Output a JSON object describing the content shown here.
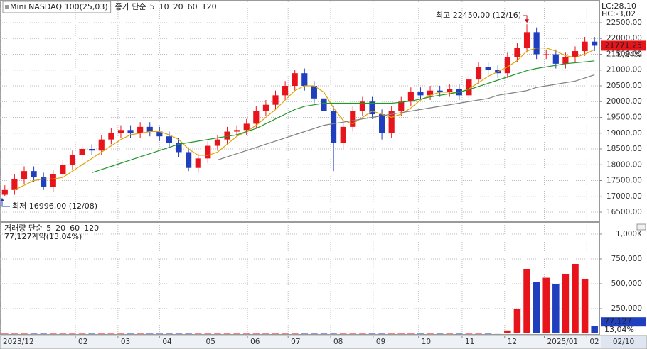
{
  "chart_data": [
    {
      "type": "candlestick",
      "title": "Mini NASDAQ 100(25,03)",
      "legend_title": "종가 단순",
      "indicators": [
        {
          "name": "5",
          "color": "#c02ac0"
        },
        {
          "name": "10",
          "color": "#2f4fe0"
        }
      ],
      "up_color": "#e8141c",
      "down_color": "#1f3fbf",
      "open": [
        17050,
        17200,
        17550,
        17800,
        17600,
        17300,
        17700,
        18000,
        18300,
        18500,
        18450,
        18800,
        19000,
        19100,
        19000,
        19200,
        19050,
        18900,
        18700,
        18400,
        17900,
        18200,
        18600,
        18800,
        19050,
        19100,
        19300,
        19700,
        19900,
        20200,
        20500,
        20900,
        20500,
        20100,
        19700,
        18700,
        19200,
        19700,
        20000,
        19600,
        19000,
        19700,
        20000,
        20300,
        20200,
        20350,
        20300,
        20400,
        20200,
        20700,
        21100,
        21000,
        20900,
        21400,
        21700,
        22200,
        21500,
        21500,
        21200,
        21400,
        21600,
        21900
      ],
      "high": [
        17350,
        17700,
        17950,
        17950,
        17750,
        17850,
        18150,
        18450,
        18650,
        18650,
        18950,
        19150,
        19250,
        19250,
        19350,
        19350,
        19200,
        19050,
        18850,
        18550,
        18350,
        18750,
        18950,
        19200,
        19250,
        19450,
        19850,
        20050,
        20350,
        20650,
        21000,
        21050,
        20650,
        20250,
        19850,
        19350,
        19850,
        20150,
        20150,
        19750,
        19850,
        20150,
        20450,
        20450,
        20500,
        20500,
        20550,
        20550,
        20850,
        21250,
        21250,
        21150,
        21550,
        21850,
        22450,
        22350,
        21650,
        21650,
        21550,
        21750,
        22050,
        22050
      ],
      "low": [
        16996,
        17050,
        17400,
        17450,
        17200,
        17150,
        17550,
        17850,
        18150,
        18300,
        18300,
        18650,
        18850,
        18850,
        18850,
        18900,
        18750,
        18550,
        18250,
        17800,
        17750,
        18050,
        18450,
        18650,
        18900,
        18950,
        19150,
        19550,
        19750,
        20050,
        20350,
        20350,
        19950,
        19550,
        17800,
        18550,
        19050,
        19550,
        19450,
        18800,
        18850,
        19550,
        19850,
        20050,
        20050,
        20150,
        20150,
        20050,
        20050,
        20550,
        20850,
        20750,
        20750,
        21250,
        21550,
        21350,
        21350,
        21050,
        21050,
        21250,
        21450,
        21600
      ],
      "close": [
        17200,
        17550,
        17800,
        17600,
        17300,
        17700,
        18000,
        18300,
        18500,
        18450,
        18800,
        19000,
        19100,
        19000,
        19200,
        19050,
        18900,
        18700,
        18400,
        17900,
        18200,
        18600,
        18800,
        19050,
        19100,
        19300,
        19700,
        19900,
        20200,
        20500,
        20900,
        20500,
        20100,
        19700,
        18700,
        19200,
        19700,
        20000,
        19600,
        19000,
        19700,
        20000,
        20300,
        20200,
        20350,
        20300,
        20400,
        20200,
        20700,
        21100,
        21000,
        20900,
        21400,
        21700,
        22200,
        21500,
        21500,
        21200,
        21400,
        21600,
        21900,
        21771.25
      ],
      "series": [
        {
          "name": "20",
          "color": "#e0a300",
          "values": [
            null,
            17200,
            17350,
            17500,
            17550,
            17550,
            17600,
            17800,
            18000,
            18200,
            18400,
            18600,
            18800,
            18950,
            19000,
            19050,
            19050,
            18950,
            18800,
            18500,
            18300,
            18300,
            18400,
            18650,
            18900,
            19050,
            19250,
            19500,
            19750,
            20050,
            20350,
            20500,
            20500,
            20300,
            19800,
            19400,
            19300,
            19500,
            19700,
            19600,
            19500,
            19600,
            19800,
            20050,
            20200,
            20300,
            20300,
            20300,
            20400,
            20600,
            20800,
            20950,
            21100,
            21300,
            21600,
            21700,
            21700,
            21600,
            21450,
            21400,
            21500,
            21650
          ]
        },
        {
          "name": "60",
          "color": "#22962a",
          "values": [
            null,
            null,
            null,
            null,
            null,
            null,
            null,
            null,
            null,
            17750,
            17850,
            17950,
            18050,
            18150,
            18250,
            18350,
            18450,
            18550,
            18650,
            18700,
            18750,
            18800,
            18850,
            18900,
            18950,
            19050,
            19150,
            19300,
            19450,
            19600,
            19750,
            19850,
            19900,
            19950,
            19950,
            19950,
            19950,
            19950,
            19950,
            19950,
            19950,
            19980,
            20020,
            20080,
            20150,
            20200,
            20250,
            20300,
            20380,
            20480,
            20580,
            20680,
            20780,
            20880,
            20980,
            21050,
            21100,
            21150,
            21200,
            21230,
            21260,
            21290
          ]
        },
        {
          "name": "120",
          "color": "#808080",
          "values": [
            null,
            null,
            null,
            null,
            null,
            null,
            null,
            null,
            null,
            null,
            null,
            null,
            null,
            null,
            null,
            null,
            null,
            null,
            null,
            null,
            null,
            null,
            18150,
            18250,
            18350,
            18450,
            18550,
            18650,
            18750,
            18850,
            18950,
            19050,
            19150,
            19250,
            19300,
            19350,
            19400,
            19450,
            19500,
            19550,
            19600,
            19650,
            19700,
            19750,
            19800,
            19850,
            19900,
            19950,
            20000,
            20050,
            20100,
            20200,
            20250,
            20300,
            20350,
            20450,
            20500,
            20550,
            20600,
            20650,
            20750,
            20850
          ]
        }
      ],
      "ylim": [
        16208,
        23174
      ],
      "yticks": [
        {
          "value": 16500,
          "label": "16500,00"
        },
        {
          "value": 17000,
          "label": "17000,00"
        },
        {
          "value": 17500,
          "label": "17500,00"
        },
        {
          "value": 18000,
          "label": "18000,00"
        },
        {
          "value": 18500,
          "label": "18500,00"
        },
        {
          "value": 19000,
          "label": "19000,00"
        },
        {
          "value": 19500,
          "label": "19500,00"
        },
        {
          "value": 20000,
          "label": "20000,00"
        },
        {
          "value": 20500,
          "label": "20500,00"
        },
        {
          "value": 21000,
          "label": "21000,00"
        },
        {
          "value": 21500,
          "label": "21500,00"
        },
        {
          "value": 22000,
          "label": "22000,00"
        },
        {
          "value": 22500,
          "label": "22500,00"
        }
      ],
      "grid": true,
      "high_annotation": {
        "value": 22450,
        "label": "최고 22450,00 (12/16)"
      },
      "low_annotation": {
        "value": 16996,
        "label": "최저 16996,00 (12/08)"
      },
      "last_price": {
        "value": 21771.25,
        "label": "21771,25"
      },
      "change": "0,84%",
      "lc": "LC:28,10",
      "hc": "HC:-3,02"
    },
    {
      "type": "bar",
      "legend_title": "거래량 단순",
      "indicators": [
        {
          "name": "5",
          "color": "#c02ac0"
        },
        {
          "name": "20",
          "color": "#e0a300"
        },
        {
          "name": "60",
          "color": "#22962a"
        },
        {
          "name": "120",
          "color": "#808080"
        }
      ],
      "status": "77,127계약(13,04%)",
      "values": [
        2000,
        2000,
        2000,
        2000,
        2000,
        2000,
        2000,
        2000,
        2000,
        2000,
        2000,
        2000,
        2000,
        2000,
        2000,
        2000,
        2000,
        2000,
        2000,
        2000,
        2000,
        2000,
        2000,
        2000,
        2000,
        2000,
        2000,
        2000,
        2000,
        2000,
        2000,
        2000,
        2000,
        2000,
        2000,
        2000,
        2000,
        2000,
        2000,
        2000,
        2000,
        2000,
        2000,
        2000,
        2000,
        2000,
        2000,
        2000,
        2000,
        2000,
        2000,
        5000,
        30000,
        250000,
        650000,
        520000,
        560000,
        500000,
        600000,
        700000,
        550000,
        77127
      ],
      "ylim": [
        0,
        1114000
      ],
      "yticks": [
        {
          "value": 250000,
          "label": "250,000"
        },
        {
          "value": 500000,
          "label": "500,000"
        },
        {
          "value": 750000,
          "label": "750,000"
        },
        {
          "value": 1000000,
          "label": "1,000K"
        }
      ],
      "grid": true,
      "last_volume": {
        "value": 77127,
        "label": "77,127"
      },
      "share": "13,04%",
      "xticks": [
        {
          "value": 0,
          "label": "2023/12"
        },
        {
          "value": 7.8,
          "label": "02"
        },
        {
          "value": 12.2,
          "label": "03"
        },
        {
          "value": 16.5,
          "label": "04"
        },
        {
          "value": 21,
          "label": "05"
        },
        {
          "value": 25.6,
          "label": "06"
        },
        {
          "value": 29.8,
          "label": "07"
        },
        {
          "value": 34.2,
          "label": "08"
        },
        {
          "value": 38.6,
          "label": "09"
        },
        {
          "value": 43.3,
          "label": "10"
        },
        {
          "value": 47.8,
          "label": "11"
        },
        {
          "value": 52.2,
          "label": "12"
        },
        {
          "value": 56.3,
          "label": "2025/01"
        },
        {
          "value": 60.7,
          "label": "02"
        }
      ],
      "cursor_date": "02/10"
    }
  ]
}
